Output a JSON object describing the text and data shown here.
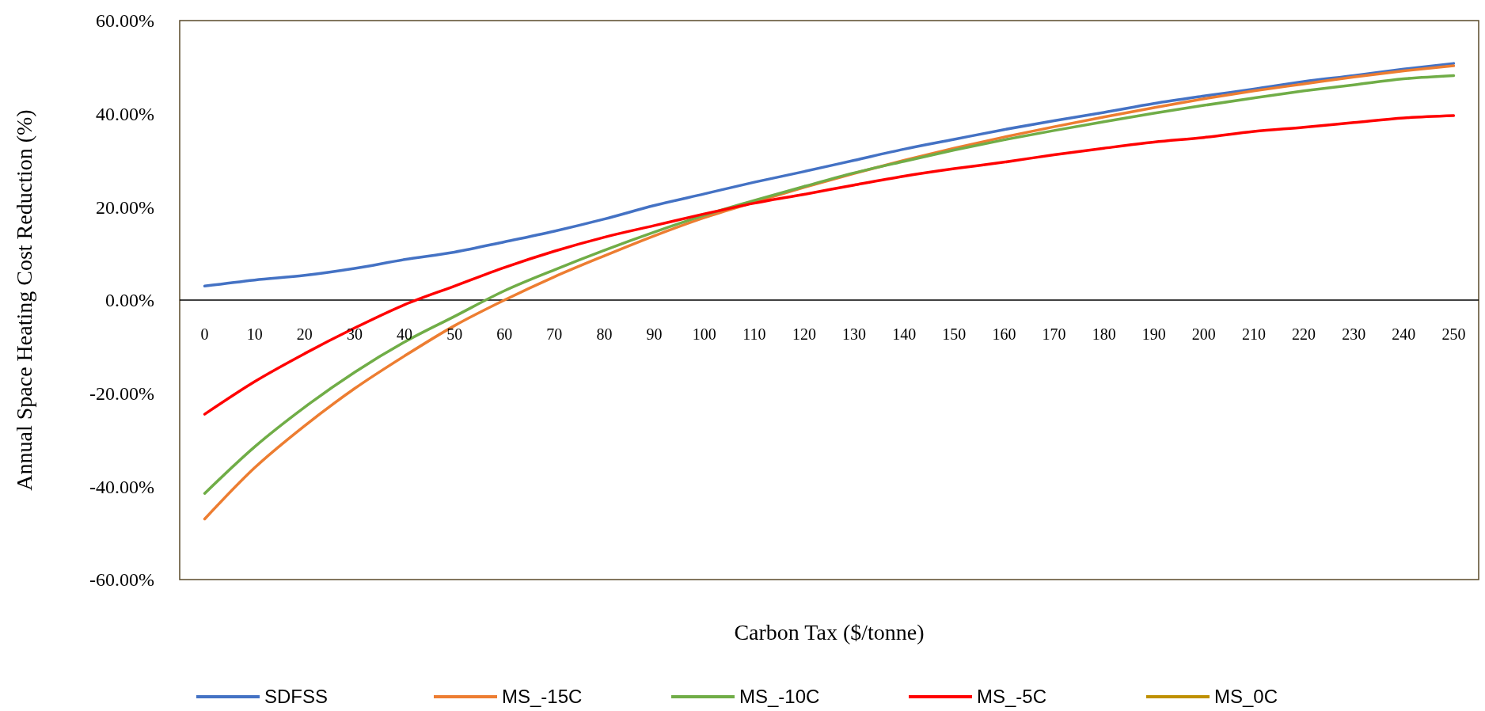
{
  "chart_data": {
    "type": "line",
    "xlabel": "Carbon Tax ($/tonne)",
    "ylabel": "Annual Space Heating Cost Reduction (%)",
    "categories": [
      "0",
      "10",
      "20",
      "30",
      "40",
      "50",
      "60",
      "70",
      "80",
      "90",
      "100",
      "110",
      "120",
      "130",
      "140",
      "150",
      "160",
      "170",
      "180",
      "190",
      "200",
      "210",
      "220",
      "230",
      "240",
      "250"
    ],
    "ylim": [
      -60,
      60
    ],
    "yticks": [
      {
        "value": -60,
        "label": "-60.00%"
      },
      {
        "value": -40,
        "label": "-40.00%"
      },
      {
        "value": -20,
        "label": "-20.00%"
      },
      {
        "value": 0,
        "label": "0.00%"
      },
      {
        "value": 20,
        "label": "20.00%"
      },
      {
        "value": 40,
        "label": "40.00%"
      },
      {
        "value": 60,
        "label": "60.00%"
      }
    ],
    "grid": false,
    "legend": "bottom",
    "marker": "none",
    "line_style": "solid",
    "series": [
      {
        "name": "SDFSS",
        "color": "#4472c4",
        "values": [
          3,
          4.3,
          5.3,
          6.8,
          8.7,
          10.3,
          12.5,
          14.8,
          17.4,
          20.3,
          22.8,
          25.3,
          27.6,
          30,
          32.4,
          34.5,
          36.6,
          38.5,
          40.3,
          42.2,
          43.8,
          45.3,
          46.9,
          48.2,
          49.6,
          50.8
        ]
      },
      {
        "name": "MS_-15C",
        "color": "#ed7d31",
        "values": [
          -47,
          -36,
          -27,
          -19,
          -12,
          -5.5,
          0,
          5,
          9.5,
          13.8,
          17.7,
          21,
          24.2,
          27.2,
          30,
          32.6,
          35,
          37.2,
          39.3,
          41.3,
          43.2,
          44.9,
          46.4,
          47.9,
          49.2,
          50.3
        ]
      },
      {
        "name": "MS_-10C",
        "color": "#70ad47",
        "values": [
          -41.5,
          -31.5,
          -23,
          -15.5,
          -9,
          -3.5,
          2,
          6.5,
          10.7,
          14.6,
          18.2,
          21.4,
          24.4,
          27.3,
          29.8,
          32.2,
          34.4,
          36.4,
          38.3,
          40.1,
          41.8,
          43.4,
          44.9,
          46.2,
          47.5,
          48.2
        ]
      },
      {
        "name": "MS_-5C",
        "color": "#ff0000",
        "values": [
          -24.5,
          -17.5,
          -11.5,
          -6,
          -1,
          3,
          7,
          10.5,
          13.5,
          16,
          18.5,
          20.8,
          22.7,
          24.7,
          26.6,
          28.2,
          29.6,
          31.2,
          32.6,
          33.9,
          34.9,
          36.2,
          37.1,
          38.1,
          39.1,
          39.6
        ]
      },
      {
        "name": "MS_0C",
        "color": "#bf9000",
        "values": [
          null,
          null,
          null,
          null,
          null,
          null,
          null,
          null,
          null,
          null,
          null,
          null,
          null,
          null,
          null,
          null,
          null,
          null,
          null,
          null,
          null,
          null,
          null,
          null,
          null,
          null
        ]
      }
    ]
  }
}
